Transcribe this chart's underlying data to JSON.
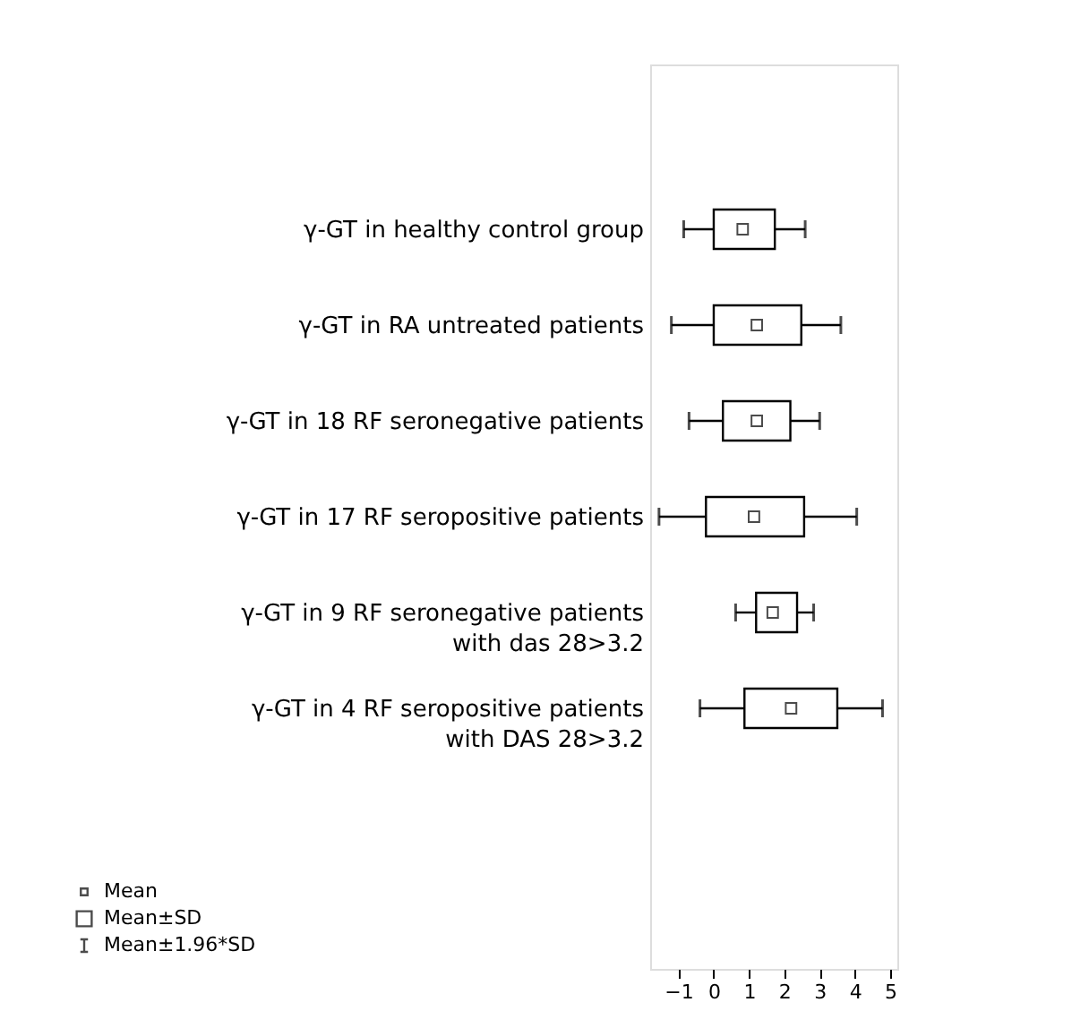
{
  "chart_data": {
    "type": "box",
    "orientation": "horizontal",
    "categories": [
      null,
      "γ-GT in healthy control group",
      "γ-GT in RA untreated patients",
      "γ-GT in 18 RF seronegative patients",
      "γ-GT in 17 RF seropositive patients",
      "γ-GT in 9 RF seronegative patients\nwith das 28>3.2",
      "γ-GT in 4 RF seropositive patients\nwith DAS 28>3.2",
      null,
      null
    ],
    "boxes": [
      null,
      {
        "low": -0.85,
        "q1": 0.0,
        "q3": 1.73,
        "high": 2.59,
        "mean": 0.82
      },
      {
        "low": -1.2,
        "q1": 0.0,
        "q3": 2.48,
        "high": 3.6,
        "mean": 1.22
      },
      {
        "low": -0.7,
        "q1": 0.26,
        "q3": 2.17,
        "high": 3.0,
        "mean": 1.22
      },
      {
        "low": -1.55,
        "q1": -0.22,
        "q3": 2.56,
        "high": 4.05,
        "mean": 1.14
      },
      {
        "low": 0.62,
        "q1": 1.2,
        "q3": 2.36,
        "high": 2.83,
        "mean": 1.67
      },
      {
        "low": -0.39,
        "q1": 0.87,
        "q3": 3.5,
        "high": 4.78,
        "mean": 2.19
      },
      null,
      null
    ],
    "color": "#000000",
    "xlim": [
      -1.8,
      5.2
    ],
    "xticks": [
      -1,
      0,
      1,
      2,
      3,
      4,
      5
    ],
    "grid": false,
    "annotations": [
      "Mean",
      "Mean±SD",
      "Mean±1.96*SD"
    ]
  }
}
